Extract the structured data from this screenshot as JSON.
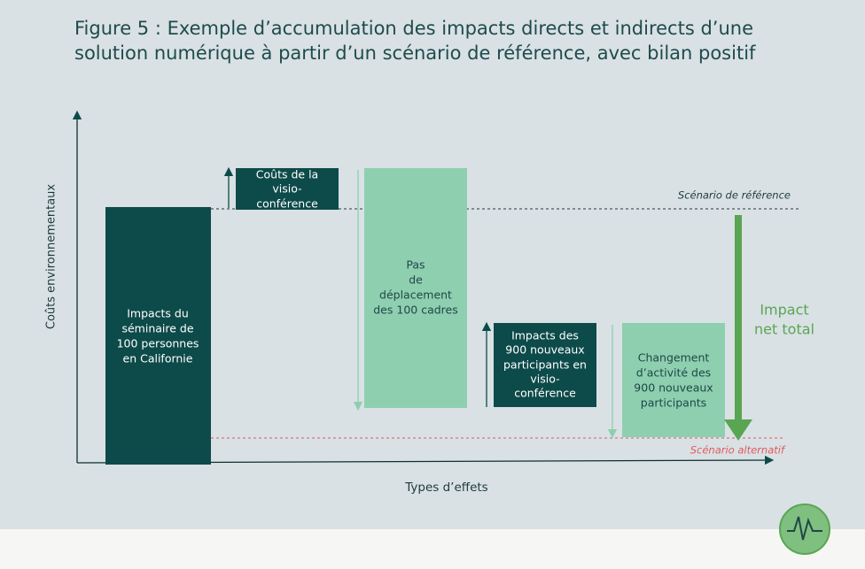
{
  "header": {
    "title_lines": [
      "Figure 5 : Exemple d’accumulation des impacts directs et indirects d’une",
      "solution numérique à partir d’un scénario de référence, avec bilan positif"
    ]
  },
  "axes": {
    "y_label": "Coûts environnementaux",
    "x_label": "Types d’effets"
  },
  "boxes": [
    {
      "lines": [
        "Impacts du",
        "séminaire de",
        "100 personnes",
        "en Californie"
      ]
    },
    {
      "lines": [
        "Coûts de la",
        "visio-",
        "conférence"
      ]
    },
    {
      "lines": [
        "Pas",
        "de",
        "déplacement",
        "des 100 cadres"
      ]
    },
    {
      "lines": [
        "Impacts des",
        "900 nouveaux",
        "participants en",
        "visio-",
        "conférence"
      ]
    },
    {
      "lines": [
        "Changement",
        "d’activité des",
        "900 nouveaux",
        "participants"
      ]
    }
  ],
  "scenarios": {
    "reference": "Scénario de référence",
    "alternative": "Scénario alternatif"
  },
  "net_impact": {
    "lines": [
      "Impact",
      "net total"
    ]
  }
}
